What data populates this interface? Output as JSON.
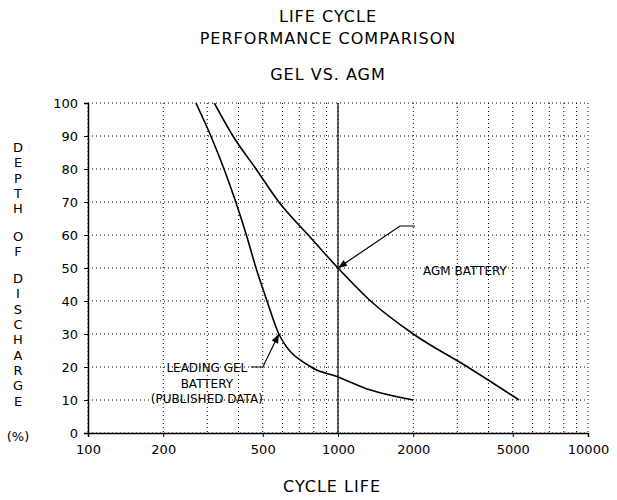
{
  "chart_data": {
    "type": "line",
    "title": [
      "LIFE CYCLE",
      "PERFORMANCE COMPARISON"
    ],
    "subtitle": "GEL VS. AGM",
    "xlabel": "CYCLE LIFE",
    "ylabel": "DEPTH OF DISCHARGE (%)",
    "log": "x",
    "grid": true,
    "xlim": [
      100,
      10000
    ],
    "xticks": [
      100,
      200,
      500,
      1000,
      2000,
      5000,
      10000
    ],
    "minor_xticks": [
      300,
      400,
      600,
      700,
      800,
      900,
      3000,
      4000,
      6000,
      7000,
      8000,
      9000
    ],
    "vlines": [
      1000
    ],
    "ylim": [
      0,
      100
    ],
    "yticks": [
      0,
      10,
      20,
      30,
      40,
      50,
      60,
      70,
      80,
      90,
      100
    ],
    "series": [
      {
        "color": "#000000",
        "x": [
          320,
          380,
          470,
          580,
          760,
          1000,
          1350,
          2000,
          3300,
          5300
        ],
        "values": [
          100,
          90,
          80,
          70,
          60,
          50,
          40,
          30,
          20,
          10
        ]
      },
      {
        "color": "#000000",
        "x": [
          270,
          310,
          350,
          390,
          430,
          470,
          520,
          580,
          780,
          1000,
          1350,
          2000
        ],
        "values": [
          100,
          90,
          80,
          70,
          60,
          50,
          40,
          30,
          20,
          17,
          13,
          10
        ]
      }
    ],
    "annotations": [
      {
        "lines": [
          "AGM BATTERY"
        ],
        "x": 1000,
        "y": 50
      },
      {
        "lines": [
          "LEADING GEL",
          "BATTERY",
          "(PUBLISHED DATA)"
        ],
        "x": 580,
        "y": 30
      }
    ]
  }
}
